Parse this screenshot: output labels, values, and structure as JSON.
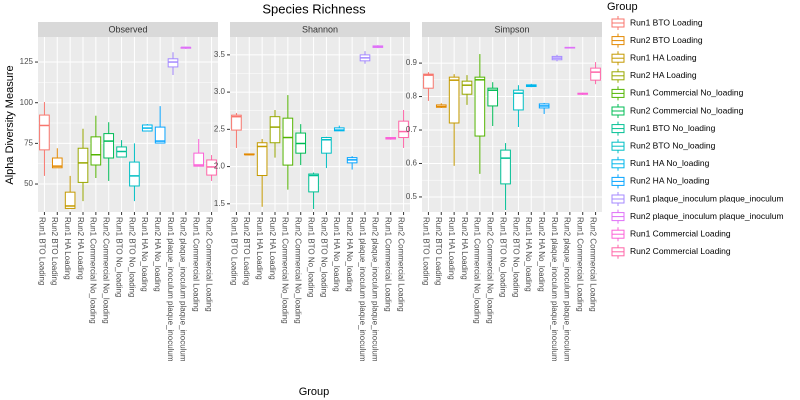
{
  "title": "Species Richness",
  "ylabel": "Alpha Diversity Measure",
  "xlabel": "Group",
  "legend": {
    "title": "Group",
    "colors": [
      "#F8766D",
      "#E38900",
      "#C49A00",
      "#99A800",
      "#53B400",
      "#00BC56",
      "#00C094",
      "#00BFC4",
      "#00B6EB",
      "#06A4FF",
      "#A58AFF",
      "#DF70F8",
      "#FB61D7",
      "#FF66A8"
    ]
  },
  "chart_data": [
    {
      "type": "box",
      "facet": "Observed",
      "categories": [
        "Run1 BTO Loading",
        "Run2 BTO Loading",
        "Run1 HA Loading",
        "Run2 HA Loading",
        "Run1 Commercial No_loading",
        "Run2 Commercial No_loading",
        "Run1 BTO No_loading",
        "Run2 BTO No_loading",
        "Run1 HA No_loading",
        "Run2 HA No_loading",
        "Run1 plaque_inoculum plaque_inoculum",
        "Run2 plaque_inoculum plaque_inoculum",
        "Run1 Commercial Loading",
        "Run2 Commercial Loading"
      ],
      "boxes": [
        {
          "min": 55,
          "q1": 71,
          "median": 86,
          "q3": 92.4,
          "max": 100.4
        },
        {
          "min": 60,
          "q1": 60,
          "median": 61,
          "q3": 66,
          "max": 72
        },
        {
          "min": 35,
          "q1": 35,
          "median": 36.5,
          "q3": 45,
          "max": 55
        },
        {
          "min": 39.5,
          "q1": 51,
          "median": 63,
          "q3": 72,
          "max": 84
        },
        {
          "min": 53.7,
          "q1": 61.7,
          "median": 68,
          "q3": 79,
          "max": 92
        },
        {
          "min": 51.9,
          "q1": 66,
          "median": 76.4,
          "q3": 81,
          "max": 88
        },
        {
          "min": 66.6,
          "q1": 66.6,
          "median": 70,
          "q3": 72.8,
          "max": 77
        },
        {
          "min": 39.5,
          "q1": 48.8,
          "median": 55,
          "q3": 63.5,
          "max": 75
        },
        {
          "min": 82.6,
          "q1": 82.6,
          "median": 84.4,
          "q3": 86.3,
          "max": 86.9
        },
        {
          "min": 75.2,
          "q1": 75.2,
          "median": 76.4,
          "q3": 85,
          "max": 97.9
        },
        {
          "min": 117,
          "q1": 122,
          "median": 125,
          "q3": 127,
          "max": 131
        },
        {
          "min": 133,
          "q1": 133.5,
          "median": 134,
          "q3": 134,
          "max": 134.5
        },
        {
          "min": 61,
          "q1": 61,
          "median": 61.7,
          "q3": 69,
          "max": 77.7
        },
        {
          "min": 51.9,
          "q1": 55.5,
          "median": 60.5,
          "q3": 64.8,
          "max": 67.8
        }
      ],
      "ylim": [
        32.8,
        140.4
      ],
      "yticks": [
        50,
        75,
        100,
        125
      ]
    },
    {
      "type": "box",
      "facet": "Shannon",
      "categories": [
        "Run1 BTO Loading",
        "Run2 BTO Loading",
        "Run1 HA Loading",
        "Run2 HA Loading",
        "Run1 Commercial No_loading",
        "Run2 Commercial No_loading",
        "Run1 BTO No_loading",
        "Run2 BTO No_loading",
        "Run1 HA No_loading",
        "Run2 HA No_loading",
        "Run1 plaque_inoculum plaque_inoculum",
        "Run2 plaque_inoculum plaque_inoculum",
        "Run1 Commercial Loading",
        "Run2 Commercial Loading"
      ],
      "boxes": [
        {
          "min": 2.25,
          "q1": 2.49,
          "median": 2.67,
          "q3": 2.69,
          "max": 2.72
        },
        {
          "min": 2.15,
          "q1": 2.16,
          "median": 2.16,
          "q3": 2.17,
          "max": 2.17
        },
        {
          "min": 1.46,
          "q1": 1.88,
          "median": 2.27,
          "q3": 2.32,
          "max": 2.37
        },
        {
          "min": 2.12,
          "q1": 2.32,
          "median": 2.53,
          "q3": 2.67,
          "max": 2.76
        },
        {
          "min": 1.69,
          "q1": 2.02,
          "median": 2.39,
          "q3": 2.65,
          "max": 2.96
        },
        {
          "min": 2.02,
          "q1": 2.18,
          "median": 2.31,
          "q3": 2.45,
          "max": 2.57
        },
        {
          "min": 1.43,
          "q1": 1.66,
          "median": 1.88,
          "q3": 1.9,
          "max": 1.92
        },
        {
          "min": 1.98,
          "q1": 2.18,
          "median": 2.36,
          "q3": 2.39,
          "max": 2.4
        },
        {
          "min": 2.48,
          "q1": 2.48,
          "median": 2.49,
          "q3": 2.52,
          "max": 2.55
        },
        {
          "min": 1.96,
          "q1": 2.05,
          "median": 2.09,
          "q3": 2.12,
          "max": 2.14
        },
        {
          "min": 3.38,
          "q1": 3.42,
          "median": 3.46,
          "q3": 3.5,
          "max": 3.55
        },
        {
          "min": 3.59,
          "q1": 3.6,
          "median": 3.61,
          "q3": 3.62,
          "max": 3.63
        },
        {
          "min": 2.36,
          "q1": 2.37,
          "median": 2.38,
          "q3": 2.39,
          "max": 2.39
        },
        {
          "min": 2.25,
          "q1": 2.39,
          "median": 2.47,
          "q3": 2.61,
          "max": 2.76
        }
      ],
      "ylim": [
        1.39,
        3.74
      ],
      "yticks": [
        1.5,
        {
          "value": 2,
          "label": "2.0"
        },
        2.5,
        {
          "value": 3,
          "label": "3.0"
        },
        3.5
      ]
    },
    {
      "type": "box",
      "facet": "Simpson",
      "categories": [
        "Run1 BTO Loading",
        "Run2 BTO Loading",
        "Run1 HA Loading",
        "Run2 HA Loading",
        "Run1 Commercial No_loading",
        "Run2 Commercial No_loading",
        "Run1 BTO No_loading",
        "Run2 BTO No_loading",
        "Run1 HA No_loading",
        "Run2 HA No_loading",
        "Run1 plaque_inoculum plaque_inoculum",
        "Run2 plaque_inoculum plaque_inoculum",
        "Run1 Commercial Loading",
        "Run2 Commercial Loading"
      ],
      "boxes": [
        {
          "min": 0.787,
          "q1": 0.825,
          "median": 0.864,
          "q3": 0.867,
          "max": 0.873
        },
        {
          "min": 0.766,
          "q1": 0.768,
          "median": 0.77,
          "q3": 0.775,
          "max": 0.78
        },
        {
          "min": 0.593,
          "q1": 0.721,
          "median": 0.849,
          "q3": 0.858,
          "max": 0.867
        },
        {
          "min": 0.775,
          "q1": 0.807,
          "median": 0.834,
          "q3": 0.846,
          "max": 0.864
        },
        {
          "min": 0.569,
          "q1": 0.682,
          "median": 0.85,
          "q3": 0.858,
          "max": 0.927
        },
        {
          "min": 0.712,
          "q1": 0.772,
          "median": 0.819,
          "q3": 0.825,
          "max": 0.843
        },
        {
          "min": 0.461,
          "q1": 0.539,
          "median": 0.616,
          "q3": 0.64,
          "max": 0.661
        },
        {
          "min": 0.709,
          "q1": 0.76,
          "median": 0.81,
          "q3": 0.819,
          "max": 0.834
        },
        {
          "min": 0.828,
          "q1": 0.83,
          "median": 0.833,
          "q3": 0.835,
          "max": 0.838
        },
        {
          "min": 0.748,
          "q1": 0.766,
          "median": 0.772,
          "q3": 0.778,
          "max": 0.781
        },
        {
          "min": 0.905,
          "q1": 0.91,
          "median": 0.915,
          "q3": 0.92,
          "max": 0.925
        },
        {
          "min": 0.944,
          "q1": 0.945,
          "median": 0.946,
          "q3": 0.947,
          "max": 0.948
        },
        {
          "min": 0.805,
          "q1": 0.807,
          "median": 0.808,
          "q3": 0.81,
          "max": 0.812
        },
        {
          "min": 0.837,
          "q1": 0.849,
          "median": 0.873,
          "q3": 0.885,
          "max": 0.903
        }
      ],
      "ylim": [
        0.455,
        0.978
      ],
      "yticks": [
        0.5,
        0.6,
        0.7,
        0.8,
        0.9
      ]
    }
  ]
}
